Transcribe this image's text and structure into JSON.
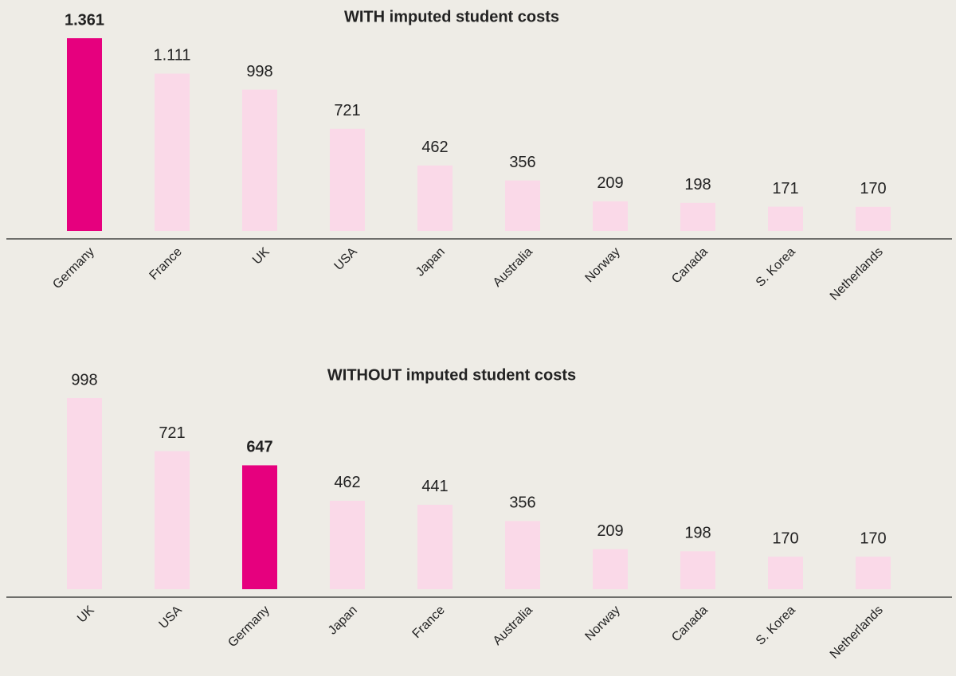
{
  "chart_data": [
    {
      "type": "bar",
      "title": "WITH imputed student costs",
      "categories": [
        "Germany",
        "France",
        "UK",
        "USA",
        "Japan",
        "Australia",
        "Norway",
        "Canada",
        "S. Korea",
        "Netherlands"
      ],
      "values": [
        1361,
        1111,
        998,
        721,
        462,
        356,
        209,
        198,
        171,
        170
      ],
      "value_labels": [
        "1.361",
        "1.111",
        "998",
        "721",
        "462",
        "356",
        "209",
        "198",
        "171",
        "170"
      ],
      "color": "#fad9e8",
      "colors": [
        "#e6007e",
        "#fad9e8",
        "#fad9e8",
        "#fad9e8",
        "#fad9e8",
        "#fad9e8",
        "#fad9e8",
        "#fad9e8",
        "#fad9e8",
        "#fad9e8"
      ]
    },
    {
      "type": "bar",
      "title": "WITHOUT imputed student costs",
      "categories": [
        "UK",
        "USA",
        "Germany",
        "Japan",
        "France",
        "Australia",
        "Norway",
        "Canada",
        "S. Korea",
        "Netherlands"
      ],
      "values": [
        998,
        721,
        647,
        462,
        441,
        356,
        209,
        198,
        170,
        170
      ],
      "color": "#fad9e8",
      "colors": [
        "#fad9e8",
        "#fad9e8",
        "#e6007e",
        "#fad9e8",
        "#fad9e8",
        "#fad9e8",
        "#fad9e8",
        "#fad9e8",
        "#fad9e8",
        "#fad9e8"
      ]
    }
  ]
}
